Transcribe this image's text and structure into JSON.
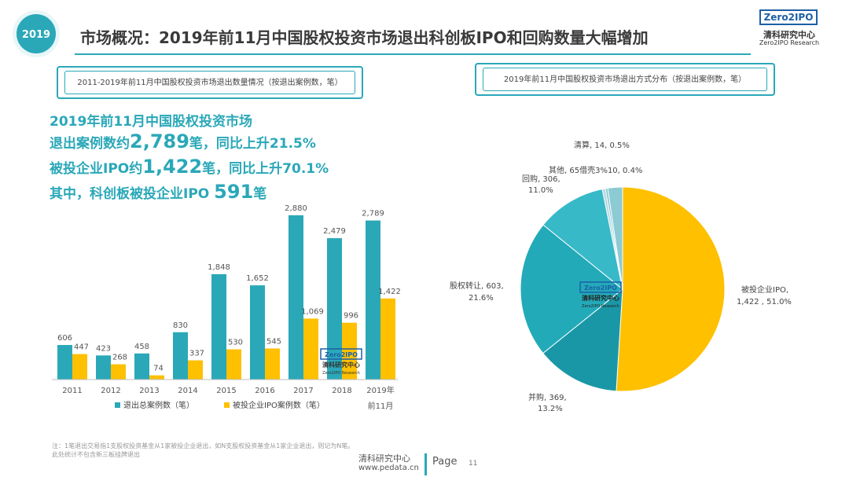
{
  "header": {
    "year_badge": "2019",
    "title": "市场概况：2019年前11月中国股权投资市场退出科创板IPO和回购数量大幅增加",
    "logo_text": "Zero2IPO",
    "logo_cn": "清科研究中心",
    "logo_en": "Zero2IPO Research"
  },
  "left_section": {
    "box_title": "2011-2019年前11月中国股权投资市场退出数量情况（按退出案例数，笔）"
  },
  "highlights": {
    "line1": "2019年前11月中国股权投资市场",
    "line2_pre": "退出案例数约",
    "line2_num": "2,789",
    "line2_post": "笔，同比上升21.5%",
    "line3_pre": "被投企业IPO约",
    "line3_num": "1,422",
    "line3_post": "笔，同比上升70.1%",
    "line4_pre": "其中，科创板被投企业IPO",
    "line4_num": "591",
    "line4_post": "笔"
  },
  "right_section": {
    "box_title": "2019年前11月中国股权投资市场退出方式分布（按退出案例数，笔）"
  },
  "watermark": {
    "logo_text": "Zero2IPO",
    "cn": "清科研究中心",
    "en": "Zero2IPO Research"
  },
  "chart_data": [
    {
      "type": "bar",
      "categories": [
        "2011",
        "2012",
        "2013",
        "2014",
        "2015",
        "2016",
        "2017",
        "2018",
        "2019年前11月"
      ],
      "series": [
        {
          "name": "退出总案例数（笔）",
          "values": [
            606,
            423,
            458,
            830,
            1848,
            1652,
            2880,
            2479,
            2789
          ],
          "color": "#2aa8b8"
        },
        {
          "name": "被投企业IPO案例数（笔）",
          "values": [
            447,
            268,
            74,
            337,
            530,
            545,
            1069,
            996,
            1422
          ],
          "color": "#ffc000"
        }
      ],
      "value_labels": [
        [
          "606",
          "423",
          "458",
          "830",
          "1,848",
          "1,652",
          "2,880",
          "2,479",
          "2,789"
        ],
        [
          "447",
          "268",
          "74",
          "337",
          "530",
          "545",
          "1,069",
          "996",
          "1,422"
        ]
      ],
      "ylim": [
        0,
        3100
      ],
      "grid": false,
      "legend": "bottom"
    },
    {
      "type": "pie",
      "slices": [
        {
          "label": "被投企业IPO",
          "value": 1422,
          "value_text": "1,422",
          "percent": "51.0%",
          "color": "#ffc000"
        },
        {
          "label": "并购",
          "value": 369,
          "value_text": "369",
          "percent": "13.2%",
          "color": "#1a97a6"
        },
        {
          "label": "股权转让",
          "value": 603,
          "value_text": "603",
          "percent": "21.6%",
          "color": "#23aab9"
        },
        {
          "label": "回购",
          "value": 306,
          "value_text": "306",
          "percent": "11.0%",
          "color": "#37b9c8"
        },
        {
          "label": "清算",
          "value": 14,
          "value_text": "14",
          "percent": "0.5%",
          "color": "#b9d9df"
        },
        {
          "label": "借壳",
          "value": 10,
          "value_text": "10",
          "percent": "0.4%",
          "color": "#7fc4cf"
        },
        {
          "label": "其他",
          "value": 65,
          "value_text": "65",
          "percent": "2.3%",
          "color": "#8ccad4"
        }
      ],
      "legend": "none"
    }
  ],
  "pie_labels": {
    "ipo_l1": "被投企业IPO,",
    "ipo_l2": "1,422 , 51.0%",
    "ma_l1": "并购, 369,",
    "ma_l2": "13.2%",
    "equity_l1": "股权转让, 603,",
    "equity_l2": "21.6%",
    "buyback_l1": "回购, 306,",
    "buyback_l2": "11.0%",
    "liquidation": "清算, 14, 0.5%",
    "other": "其他, 65借壳3%10, 0.4%"
  },
  "footer": {
    "note_line1": "注：1笔退出交易指1支股权投资基金从1家被投企业退出，如N支股权投资基金从1家企业退出，则记为N笔。",
    "note_line2": "此处统计不包含新三板挂牌退出",
    "org": "清科研究中心",
    "url": "www.pedata.cn",
    "page_label": "Page",
    "page_number": "11"
  }
}
